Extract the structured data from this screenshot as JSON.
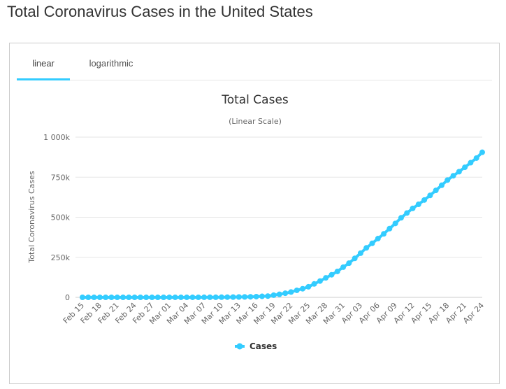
{
  "page": {
    "title": "Total Coronavirus Cases in the United States"
  },
  "tabs": [
    {
      "label": "linear",
      "active": true
    },
    {
      "label": "logarithmic",
      "active": false
    }
  ],
  "colors": {
    "series": "#33ccff",
    "tab_underline": "#33ccff",
    "grid": "#e6e6e6"
  },
  "chart_data": {
    "type": "line",
    "title": "Total Cases",
    "subtitle": "(Linear Scale)",
    "ylabel": "Total Coronavirus Cases",
    "xlabel": "",
    "ylim": [
      0,
      1000000
    ],
    "yticks": [
      0,
      250000,
      500000,
      750000,
      1000000
    ],
    "yticklabels": [
      "0",
      "250k",
      "500k",
      "750k",
      "1 000k"
    ],
    "grid": "horizontal",
    "legend": "bottom-center",
    "x_tick_labels": [
      "Feb 15",
      "Feb 18",
      "Feb 21",
      "Feb 24",
      "Feb 27",
      "Mar 01",
      "Mar 04",
      "Mar 07",
      "Mar 10",
      "Mar 13",
      "Mar 16",
      "Mar 19",
      "Mar 22",
      "Mar 25",
      "Mar 28",
      "Mar 31",
      "Apr 03",
      "Apr 06",
      "Apr 09",
      "Apr 12",
      "Apr 15",
      "Apr 18",
      "Apr 21",
      "Apr 24"
    ],
    "series": [
      {
        "name": "Cases",
        "color": "#33ccff",
        "x": [
          "Feb 15",
          "Feb 16",
          "Feb 17",
          "Feb 18",
          "Feb 19",
          "Feb 20",
          "Feb 21",
          "Feb 22",
          "Feb 23",
          "Feb 24",
          "Feb 25",
          "Feb 26",
          "Feb 27",
          "Feb 28",
          "Feb 29",
          "Mar 01",
          "Mar 02",
          "Mar 03",
          "Mar 04",
          "Mar 05",
          "Mar 06",
          "Mar 07",
          "Mar 08",
          "Mar 09",
          "Mar 10",
          "Mar 11",
          "Mar 12",
          "Mar 13",
          "Mar 14",
          "Mar 15",
          "Mar 16",
          "Mar 17",
          "Mar 18",
          "Mar 19",
          "Mar 20",
          "Mar 21",
          "Mar 22",
          "Mar 23",
          "Mar 24",
          "Mar 25",
          "Mar 26",
          "Mar 27",
          "Mar 28",
          "Mar 29",
          "Mar 30",
          "Mar 31",
          "Apr 01",
          "Apr 02",
          "Apr 03",
          "Apr 04",
          "Apr 05",
          "Apr 06",
          "Apr 07",
          "Apr 08",
          "Apr 09",
          "Apr 10",
          "Apr 11",
          "Apr 12",
          "Apr 13",
          "Apr 14",
          "Apr 15",
          "Apr 16",
          "Apr 17",
          "Apr 18",
          "Apr 19",
          "Apr 20",
          "Apr 21",
          "Apr 22",
          "Apr 23",
          "Apr 24"
        ],
        "values": [
          15,
          15,
          15,
          15,
          15,
          15,
          35,
          35,
          35,
          53,
          57,
          60,
          60,
          62,
          68,
          74,
          98,
          118,
          149,
          217,
          262,
          402,
          518,
          583,
          959,
          1281,
          1663,
          2179,
          2727,
          3499,
          4632,
          6421,
          7786,
          13680,
          19101,
          25493,
          33276,
          43847,
          53740,
          65778,
          83836,
          101657,
          121465,
          140909,
          161831,
          188172,
          213372,
          243453,
          275586,
          308850,
          337072,
          366667,
          396223,
          429052,
          461437,
          496535,
          526396,
          555313,
          580619,
          607670,
          636350,
          667801,
          699706,
          732197,
          758809,
          784326,
          811865,
          840351,
          869170,
          905358
        ]
      }
    ]
  }
}
